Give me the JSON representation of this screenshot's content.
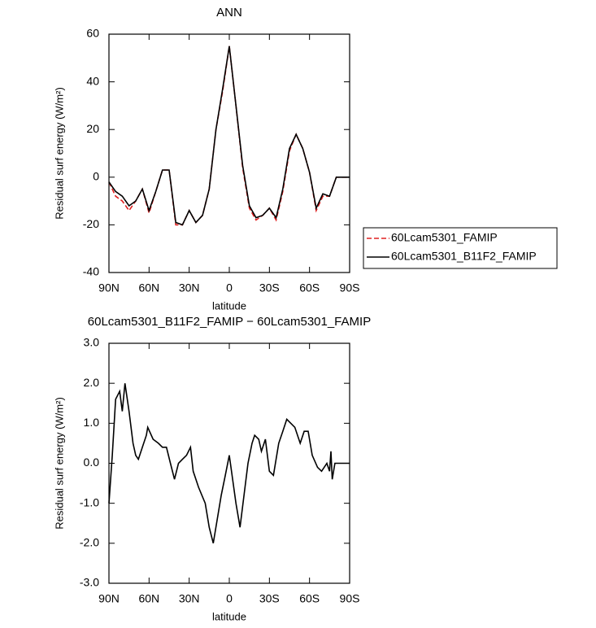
{
  "chart_data": [
    {
      "type": "line",
      "title": "ANN",
      "xlabel": "latitude",
      "ylabel": "Residual surf energy (W/m²)",
      "x": [
        90,
        85,
        80,
        75,
        70,
        65,
        60,
        55,
        50,
        45,
        40,
        35,
        30,
        25,
        20,
        15,
        10,
        5,
        0,
        -5,
        -10,
        -15,
        -20,
        -25,
        -30,
        -35,
        -40,
        -45,
        -50,
        -55,
        -60,
        -65,
        -70,
        -75,
        -80,
        -85,
        -90
      ],
      "series": [
        {
          "name": "60Lcam5301_FAMIP",
          "color": "#e02020",
          "dash": true,
          "values": [
            -2,
            -8,
            -10,
            -14,
            -10,
            -5,
            -15,
            -6,
            3,
            3,
            -20,
            -20,
            -14,
            -19,
            -16,
            -5,
            20,
            36,
            55,
            30,
            4,
            -13,
            -18,
            -16,
            -13,
            -18,
            -6,
            11,
            18,
            12,
            2,
            -14,
            -8,
            -8,
            0,
            0,
            0
          ]
        },
        {
          "name": "60Lcam5301_B11F2_FAMIP",
          "color": "#000000",
          "dash": false,
          "values": [
            -2,
            -6,
            -8,
            -12,
            -10,
            -5,
            -14,
            -6,
            3,
            3,
            -19,
            -20,
            -14,
            -19,
            -16,
            -5,
            20,
            37,
            55,
            30,
            5,
            -12,
            -17,
            -16,
            -13,
            -17,
            -5,
            12,
            18,
            12,
            2,
            -13,
            -7,
            -8,
            0,
            0,
            0
          ]
        }
      ],
      "xlim": [
        90,
        -90
      ],
      "xticks": [
        {
          "value": 90,
          "label": "90N"
        },
        {
          "value": 60,
          "label": "60N"
        },
        {
          "value": 30,
          "label": "30N"
        },
        0,
        {
          "value": -30,
          "label": "30S"
        },
        {
          "value": -60,
          "label": "60S"
        },
        {
          "value": -90,
          "label": "90S"
        }
      ],
      "ylim": [
        -40,
        60
      ],
      "yticks": [
        60,
        40,
        20,
        0,
        -20,
        -40
      ],
      "legend": "right"
    },
    {
      "type": "line",
      "title": "60Lcam5301_B11F2_FAMIP − 60Lcam5301_FAMIP",
      "xlabel": "latitude",
      "ylabel": "Residual surf energy (W/m²)",
      "x": [
        90,
        87.5,
        85,
        82,
        80,
        78,
        75,
        72,
        70,
        68,
        65,
        62,
        61,
        57,
        53,
        50,
        47,
        44,
        41,
        38,
        35,
        32,
        29,
        27,
        23,
        18,
        15,
        12,
        9,
        6,
        3,
        0,
        -2.5,
        -5,
        -8,
        -11,
        -14,
        -17,
        -19,
        -22,
        -24,
        -27,
        -30,
        -33,
        -37,
        -40,
        -43,
        -46,
        -49,
        -53,
        -56,
        -59,
        -62,
        -66,
        -69,
        -73,
        -75,
        -76,
        -77,
        -79,
        -84,
        -90
      ],
      "values": [
        -1.0,
        0.2,
        1.6,
        1.8,
        1.3,
        2.0,
        1.3,
        0.5,
        0.2,
        0.1,
        0.4,
        0.7,
        0.9,
        0.6,
        0.5,
        0.4,
        0.4,
        0.0,
        -0.4,
        0.0,
        0.1,
        0.2,
        0.4,
        -0.2,
        -0.6,
        -1.0,
        -1.6,
        -2.0,
        -1.4,
        -0.8,
        -0.3,
        0.2,
        -0.4,
        -1.0,
        -1.6,
        -0.8,
        0.0,
        0.5,
        0.7,
        0.6,
        0.3,
        0.6,
        -0.2,
        -0.3,
        0.5,
        0.8,
        1.1,
        1.0,
        0.9,
        0.5,
        0.8,
        0.8,
        0.2,
        -0.1,
        -0.2,
        0.0,
        -0.2,
        0.3,
        -0.4,
        0.0,
        0.0,
        0.0
      ],
      "color": "#000000",
      "xlim": [
        90,
        -90
      ],
      "xticks": [
        {
          "value": 90,
          "label": "90N"
        },
        {
          "value": 60,
          "label": "60N"
        },
        {
          "value": 30,
          "label": "30N"
        },
        0,
        {
          "value": -30,
          "label": "30S"
        },
        {
          "value": -60,
          "label": "60S"
        },
        {
          "value": -90,
          "label": "90S"
        }
      ],
      "ylim": [
        -3,
        3
      ],
      "yticks": [
        {
          "value": 3,
          "label": "3.0"
        },
        {
          "value": 2,
          "label": "2.0"
        },
        {
          "value": 1,
          "label": "1.0"
        },
        {
          "value": 0,
          "label": "0.0"
        },
        {
          "value": -1,
          "label": "-1.0"
        },
        {
          "value": -2,
          "label": "-2.0"
        },
        {
          "value": -3,
          "label": "-3.0"
        }
      ]
    }
  ]
}
